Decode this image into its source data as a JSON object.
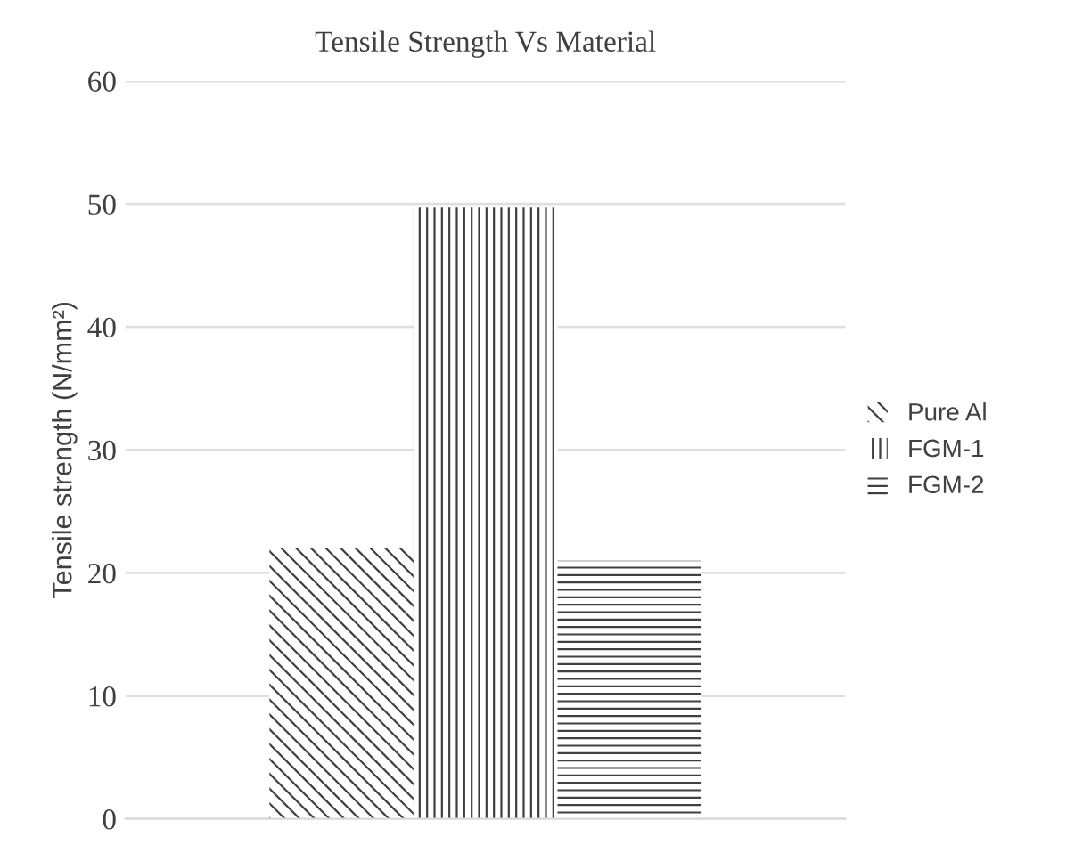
{
  "chart_data": {
    "type": "bar",
    "title": "Tensile Strength Vs Material",
    "ylabel": "Tensile strength (N/mm²)",
    "categories": [
      null
    ],
    "series": [
      {
        "name": "Pure Al",
        "color": "#404040",
        "values": [
          22
        ]
      },
      {
        "name": "FGM-1",
        "color": "#404040",
        "values": [
          49.7
        ]
      },
      {
        "name": "FGM-2",
        "color": "#404040",
        "values": [
          21
        ]
      }
    ],
    "ylim": [
      0,
      60
    ],
    "yticks": [
      0,
      10,
      20,
      30,
      40,
      50,
      60
    ],
    "grid": "y",
    "legend": "right",
    "tick_labels": "y"
  }
}
